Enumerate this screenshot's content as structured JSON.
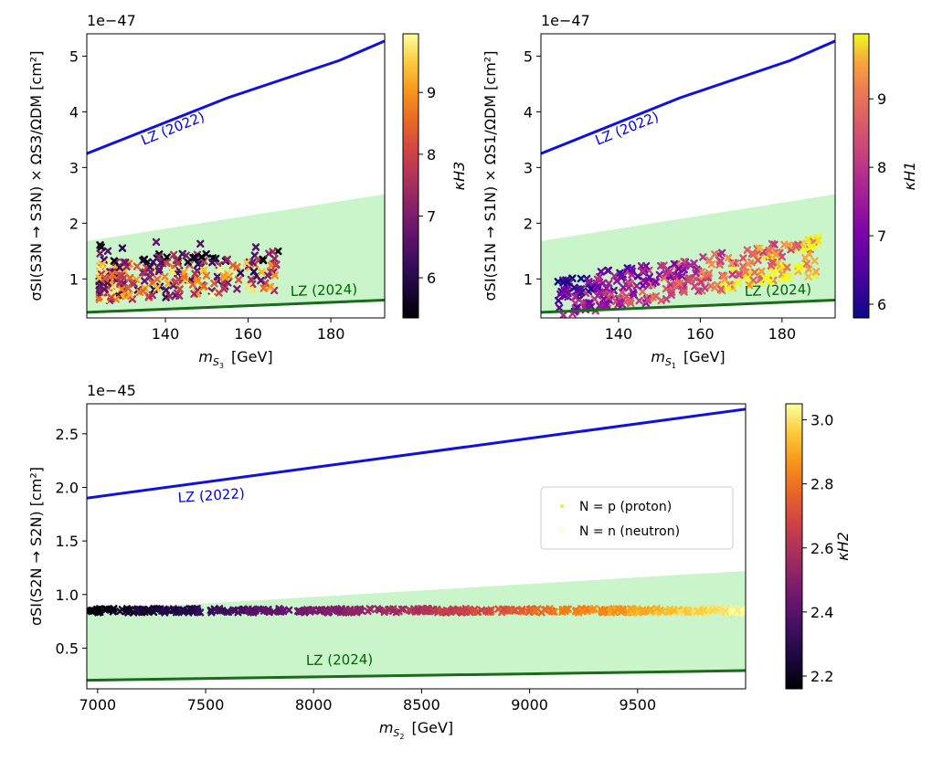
{
  "chart_data": [
    {
      "type": "scatter",
      "panel": "top-left",
      "offset_label": "1e−47",
      "xlabel_main": "m",
      "xlabel_sub": "S",
      "xlabel_subsub": "3",
      "xlabel_unit": "[GeV]",
      "ylabel": "σSI(S3N → S3N) × ΩS3/ΩDM  [cm²]",
      "xlim": [
        121,
        193
      ],
      "ylim": [
        0.3,
        5.4
      ],
      "xticks": [
        140,
        160,
        180
      ],
      "yticks": [
        1,
        2,
        3,
        4,
        5
      ],
      "lz2022": {
        "label": "LZ (2022)",
        "x": [
          121,
          155,
          182,
          193
        ],
        "y": [
          3.25,
          4.25,
          4.92,
          5.27
        ]
      },
      "lz2024": {
        "label": "LZ (2024)",
        "x": [
          121,
          193
        ],
        "y": [
          0.4,
          0.62
        ]
      },
      "band": {
        "x": [
          121,
          193
        ],
        "upper": [
          1.68,
          2.52
        ]
      },
      "colorbar": {
        "label": "κH3",
        "min": 5.35,
        "max": 9.95,
        "ticks": [
          6,
          7,
          8,
          9
        ]
      },
      "points_summary": "cluster at x≈124–168, y≈0.6–1.6, kappa 5.4–9.9"
    },
    {
      "type": "scatter",
      "panel": "top-right",
      "offset_label": "1e−47",
      "xlabel_main": "m",
      "xlabel_sub": "S",
      "xlabel_subsub": "1",
      "xlabel_unit": "[GeV]",
      "ylabel": "σSI(S1N → S1N) × ΩS1/ΩDM  [cm²]",
      "xlim": [
        121,
        193
      ],
      "ylim": [
        0.3,
        5.4
      ],
      "xticks": [
        140,
        160,
        180
      ],
      "yticks": [
        1,
        2,
        3,
        4,
        5
      ],
      "lz2022": {
        "label": "LZ (2022)",
        "x": [
          121,
          155,
          182,
          193
        ],
        "y": [
          3.25,
          4.25,
          4.92,
          5.27
        ]
      },
      "lz2024": {
        "label": "LZ (2024)",
        "x": [
          121,
          193
        ],
        "y": [
          0.4,
          0.62
        ]
      },
      "band": {
        "x": [
          121,
          193
        ],
        "upper": [
          1.68,
          2.52
        ]
      },
      "colorbar": {
        "label": "κH1",
        "min": 5.8,
        "max": 9.95,
        "ticks": [
          6,
          7,
          8,
          9
        ]
      },
      "points_summary": "rising band x≈125–190, y≈0.5–1.85, kappa 5.8–9.9"
    },
    {
      "type": "scatter",
      "panel": "bottom",
      "offset_label": "1e−45",
      "xlabel_main": "m",
      "xlabel_sub": "S",
      "xlabel_subsub": "2",
      "xlabel_unit": "[GeV]",
      "ylabel": "σSI(S2N → S2N)  [cm²]",
      "xlim": [
        6950,
        10000
      ],
      "ylim": [
        0.12,
        2.78
      ],
      "xticks": [
        7000,
        7500,
        8000,
        8500,
        9000,
        9500
      ],
      "yticks": [
        0.5,
        1.0,
        1.5,
        2.0,
        2.5
      ],
      "lz2022": {
        "label": "LZ (2022)",
        "x": [
          6950,
          10000
        ],
        "y": [
          1.9,
          2.73
        ]
      },
      "lz2024": {
        "label": "LZ (2024)",
        "x": [
          6950,
          10000
        ],
        "y": [
          0.2,
          0.29
        ]
      },
      "band": {
        "x": [
          6950,
          10000
        ],
        "upper": [
          0.85,
          1.22
        ]
      },
      "colorbar": {
        "label": "κH2",
        "min": 2.16,
        "max": 3.05,
        "ticks": [
          2.2,
          2.4,
          2.6,
          2.8,
          3.0
        ]
      },
      "points_summary": "horizontal line y≈0.83–0.87 across x=6950–10000, kappa increasing with x",
      "legend": [
        {
          "marker": "dot",
          "label": "N = p (proton)"
        },
        {
          "marker": "x",
          "label": "N = n (neutron)"
        }
      ]
    }
  ]
}
